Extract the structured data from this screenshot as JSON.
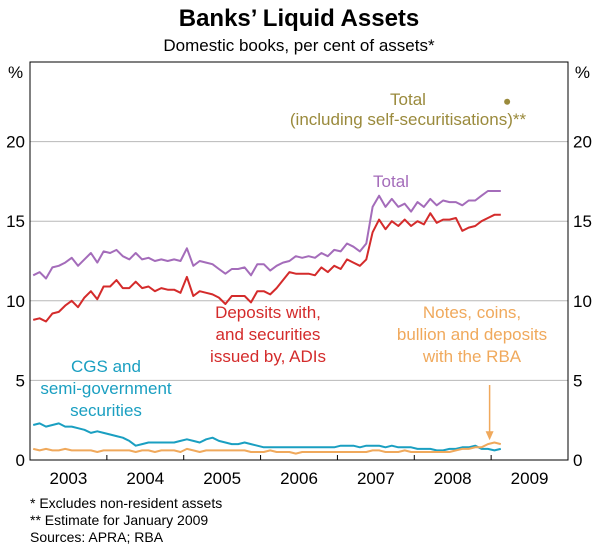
{
  "chart_data": {
    "type": "line",
    "title": "Banks’ Liquid Assets",
    "subtitle": "Domestic books, per cent of assets*",
    "y_unit": "%",
    "ylim": [
      0,
      25
    ],
    "y_ticks": [
      0,
      5,
      10,
      15,
      20
    ],
    "x_range": [
      2002.5,
      2009.5
    ],
    "x_ticks": [
      "2003",
      "2004",
      "2005",
      "2006",
      "2007",
      "2008",
      "2009"
    ],
    "x_tick_positions": [
      2003,
      2004,
      2005,
      2006,
      2007,
      2008,
      2009
    ],
    "grid": true,
    "series": [
      {
        "name": "Total",
        "color": "#a46cba",
        "x": [
          2002.542,
          2002.625,
          2002.708,
          2002.792,
          2002.875,
          2002.958,
          2003.042,
          2003.125,
          2003.208,
          2003.292,
          2003.375,
          2003.458,
          2003.542,
          2003.625,
          2003.708,
          2003.792,
          2003.875,
          2003.958,
          2004.042,
          2004.125,
          2004.208,
          2004.292,
          2004.375,
          2004.458,
          2004.542,
          2004.625,
          2004.708,
          2004.792,
          2004.875,
          2004.958,
          2005.042,
          2005.125,
          2005.208,
          2005.292,
          2005.375,
          2005.458,
          2005.542,
          2005.625,
          2005.708,
          2005.792,
          2005.875,
          2005.958,
          2006.042,
          2006.125,
          2006.208,
          2006.292,
          2006.375,
          2006.458,
          2006.542,
          2006.625,
          2006.708,
          2006.792,
          2006.875,
          2006.958,
          2007.042,
          2007.125,
          2007.208,
          2007.292,
          2007.375,
          2007.458,
          2007.542,
          2007.625,
          2007.708,
          2007.792,
          2007.875,
          2007.958,
          2008.042,
          2008.125,
          2008.208,
          2008.292,
          2008.375,
          2008.458,
          2008.542,
          2008.625
        ],
        "values": [
          11.6,
          11.8,
          11.4,
          12.1,
          12.2,
          12.4,
          12.7,
          12.2,
          12.6,
          13.0,
          12.4,
          13.1,
          13.0,
          13.2,
          12.8,
          12.6,
          13.0,
          12.6,
          12.7,
          12.5,
          12.6,
          12.5,
          12.6,
          12.5,
          13.3,
          12.2,
          12.5,
          12.4,
          12.3,
          12.0,
          11.7,
          12.0,
          12.0,
          12.1,
          11.6,
          12.3,
          12.3,
          11.9,
          12.2,
          12.4,
          12.5,
          12.8,
          12.7,
          12.8,
          12.7,
          13.0,
          12.8,
          13.2,
          13.1,
          13.6,
          13.4,
          13.1,
          13.6,
          15.9,
          16.6,
          15.9,
          16.4,
          15.9,
          16.1,
          15.6,
          16.2,
          15.9,
          16.4,
          16.0,
          16.3,
          16.2,
          16.2,
          16.0,
          16.3,
          16.3,
          16.6,
          16.9,
          16.9,
          16.9
        ]
      },
      {
        "name": "Deposits with, and securities issued by, ADIs",
        "color": "#d42b2b",
        "x": [
          2002.542,
          2002.625,
          2002.708,
          2002.792,
          2002.875,
          2002.958,
          2003.042,
          2003.125,
          2003.208,
          2003.292,
          2003.375,
          2003.458,
          2003.542,
          2003.625,
          2003.708,
          2003.792,
          2003.875,
          2003.958,
          2004.042,
          2004.125,
          2004.208,
          2004.292,
          2004.375,
          2004.458,
          2004.542,
          2004.625,
          2004.708,
          2004.792,
          2004.875,
          2004.958,
          2005.042,
          2005.125,
          2005.208,
          2005.292,
          2005.375,
          2005.458,
          2005.542,
          2005.625,
          2005.708,
          2005.792,
          2005.875,
          2005.958,
          2006.042,
          2006.125,
          2006.208,
          2006.292,
          2006.375,
          2006.458,
          2006.542,
          2006.625,
          2006.708,
          2006.792,
          2006.875,
          2006.958,
          2007.042,
          2007.125,
          2007.208,
          2007.292,
          2007.375,
          2007.458,
          2007.542,
          2007.625,
          2007.708,
          2007.792,
          2007.875,
          2007.958,
          2008.042,
          2008.125,
          2008.208,
          2008.292,
          2008.375,
          2008.458,
          2008.542,
          2008.625
        ],
        "values": [
          8.8,
          8.9,
          8.7,
          9.2,
          9.3,
          9.7,
          10.0,
          9.6,
          10.2,
          10.6,
          10.1,
          10.9,
          10.9,
          11.3,
          10.8,
          10.8,
          11.2,
          10.8,
          10.9,
          10.6,
          10.8,
          10.7,
          10.7,
          10.5,
          11.5,
          10.3,
          10.6,
          10.5,
          10.4,
          10.2,
          9.8,
          10.3,
          10.3,
          10.3,
          9.9,
          10.6,
          10.6,
          10.4,
          10.8,
          11.3,
          11.8,
          11.7,
          11.7,
          11.7,
          11.6,
          12.1,
          11.8,
          12.2,
          12.0,
          12.6,
          12.4,
          12.2,
          12.6,
          14.3,
          15.1,
          14.5,
          15.0,
          14.7,
          15.1,
          14.7,
          15.0,
          14.8,
          15.5,
          14.9,
          15.1,
          15.1,
          15.2,
          14.4,
          14.6,
          14.7,
          15.0,
          15.2,
          15.4,
          15.4
        ]
      },
      {
        "name": "CGS and semi-government securities",
        "color": "#1a9fc1",
        "x": [
          2002.542,
          2002.625,
          2002.708,
          2002.792,
          2002.875,
          2002.958,
          2003.042,
          2003.125,
          2003.208,
          2003.292,
          2003.375,
          2003.458,
          2003.542,
          2003.625,
          2003.708,
          2003.792,
          2003.875,
          2003.958,
          2004.042,
          2004.125,
          2004.208,
          2004.292,
          2004.375,
          2004.458,
          2004.542,
          2004.625,
          2004.708,
          2004.792,
          2004.875,
          2004.958,
          2005.042,
          2005.125,
          2005.208,
          2005.292,
          2005.375,
          2005.458,
          2005.542,
          2005.625,
          2005.708,
          2005.792,
          2005.875,
          2005.958,
          2006.042,
          2006.125,
          2006.208,
          2006.292,
          2006.375,
          2006.458,
          2006.542,
          2006.625,
          2006.708,
          2006.792,
          2006.875,
          2006.958,
          2007.042,
          2007.125,
          2007.208,
          2007.292,
          2007.375,
          2007.458,
          2007.542,
          2007.625,
          2007.708,
          2007.792,
          2007.875,
          2007.958,
          2008.042,
          2008.125,
          2008.208,
          2008.292,
          2008.375,
          2008.458,
          2008.542,
          2008.625
        ],
        "values": [
          2.2,
          2.3,
          2.1,
          2.2,
          2.3,
          2.1,
          2.1,
          2.0,
          1.9,
          1.7,
          1.8,
          1.7,
          1.6,
          1.5,
          1.4,
          1.2,
          0.9,
          1.0,
          1.1,
          1.1,
          1.1,
          1.1,
          1.1,
          1.2,
          1.3,
          1.2,
          1.1,
          1.3,
          1.4,
          1.2,
          1.1,
          1.0,
          1.0,
          1.1,
          1.0,
          0.9,
          0.8,
          0.8,
          0.8,
          0.8,
          0.8,
          0.8,
          0.8,
          0.8,
          0.8,
          0.8,
          0.8,
          0.8,
          0.9,
          0.9,
          0.9,
          0.8,
          0.9,
          0.9,
          0.9,
          0.8,
          0.9,
          0.8,
          0.8,
          0.8,
          0.7,
          0.7,
          0.7,
          0.6,
          0.6,
          0.7,
          0.7,
          0.8,
          0.8,
          0.9,
          0.7,
          0.7,
          0.6,
          0.7
        ]
      },
      {
        "name": "Notes, coins, bullion and deposits with the RBA",
        "color": "#f0a95c",
        "x": [
          2002.542,
          2002.625,
          2002.708,
          2002.792,
          2002.875,
          2002.958,
          2003.042,
          2003.125,
          2003.208,
          2003.292,
          2003.375,
          2003.458,
          2003.542,
          2003.625,
          2003.708,
          2003.792,
          2003.875,
          2003.958,
          2004.042,
          2004.125,
          2004.208,
          2004.292,
          2004.375,
          2004.458,
          2004.542,
          2004.625,
          2004.708,
          2004.792,
          2004.875,
          2004.958,
          2005.042,
          2005.125,
          2005.208,
          2005.292,
          2005.375,
          2005.458,
          2005.542,
          2005.625,
          2005.708,
          2005.792,
          2005.875,
          2005.958,
          2006.042,
          2006.125,
          2006.208,
          2006.292,
          2006.375,
          2006.458,
          2006.542,
          2006.625,
          2006.708,
          2006.792,
          2006.875,
          2006.958,
          2007.042,
          2007.125,
          2007.208,
          2007.292,
          2007.375,
          2007.458,
          2007.542,
          2007.625,
          2007.708,
          2007.792,
          2007.875,
          2007.958,
          2008.042,
          2008.125,
          2008.208,
          2008.292,
          2008.375,
          2008.458,
          2008.542,
          2008.625
        ],
        "values": [
          0.7,
          0.6,
          0.7,
          0.6,
          0.6,
          0.7,
          0.6,
          0.6,
          0.6,
          0.6,
          0.5,
          0.6,
          0.6,
          0.6,
          0.6,
          0.6,
          0.5,
          0.6,
          0.6,
          0.5,
          0.6,
          0.6,
          0.6,
          0.5,
          0.7,
          0.6,
          0.5,
          0.6,
          0.6,
          0.6,
          0.6,
          0.6,
          0.6,
          0.6,
          0.5,
          0.5,
          0.5,
          0.6,
          0.5,
          0.5,
          0.5,
          0.4,
          0.5,
          0.5,
          0.5,
          0.5,
          0.5,
          0.5,
          0.5,
          0.5,
          0.5,
          0.5,
          0.5,
          0.6,
          0.6,
          0.5,
          0.5,
          0.5,
          0.6,
          0.5,
          0.5,
          0.5,
          0.5,
          0.5,
          0.5,
          0.5,
          0.6,
          0.7,
          0.7,
          0.8,
          0.8,
          1.0,
          1.1,
          1.0
        ]
      }
    ],
    "estimate_point": {
      "x": 2008.708,
      "y": 22.5,
      "color": "#9a8a3c"
    },
    "annotations": [
      {
        "id": "est",
        "lines": [
          "Total",
          "(including self-securitisations)**"
        ],
        "color": "#9a8a3c"
      },
      {
        "id": "total",
        "lines": [
          "Total"
        ],
        "color": "#a46cba"
      },
      {
        "id": "adi",
        "lines": [
          "Deposits with,",
          "and securities",
          "issued by, ADIs"
        ],
        "color": "#d42b2b"
      },
      {
        "id": "notes",
        "lines": [
          "Notes, coins,",
          "bullion and deposits",
          "with the RBA"
        ],
        "color": "#f0a95c"
      },
      {
        "id": "cgs",
        "lines": [
          "CGS and",
          "semi-government",
          "securities"
        ],
        "color": "#1a9fc1"
      }
    ],
    "footnotes": [
      "*   Excludes non-resident assets",
      "** Estimate for January 2009",
      "Sources: APRA; RBA"
    ]
  }
}
